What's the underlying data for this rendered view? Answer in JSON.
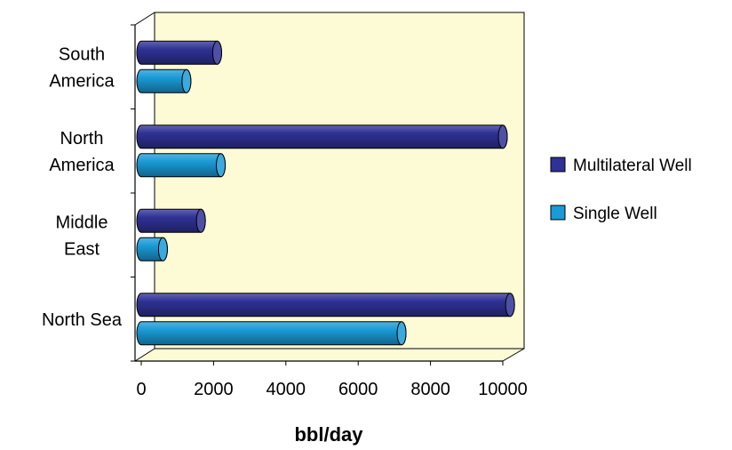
{
  "chart_data": {
    "type": "bar",
    "orientation": "horizontal",
    "style": "3d-cylinder",
    "categories": [
      {
        "lines": [
          "South",
          "America"
        ]
      },
      {
        "lines": [
          "North",
          "America"
        ]
      },
      {
        "lines": [
          "Middle",
          "East"
        ]
      },
      {
        "lines": [
          "North Sea"
        ]
      }
    ],
    "series": [
      {
        "name": "Multilateral Well",
        "color": "#2f3195",
        "values": [
          2100,
          10000,
          1650,
          10200
        ]
      },
      {
        "name": "Single Well",
        "color": "#1a9ad6",
        "values": [
          1250,
          2200,
          600,
          7200
        ]
      }
    ],
    "x_ticks": [
      "0",
      "2000",
      "4000",
      "6000",
      "8000",
      "10000"
    ],
    "xlim": [
      0,
      10000
    ],
    "xlabel": "bbl/day",
    "ylabel": "",
    "title": "",
    "grid": false,
    "legend_position": "right",
    "plot_background": "#fdfbd6"
  }
}
